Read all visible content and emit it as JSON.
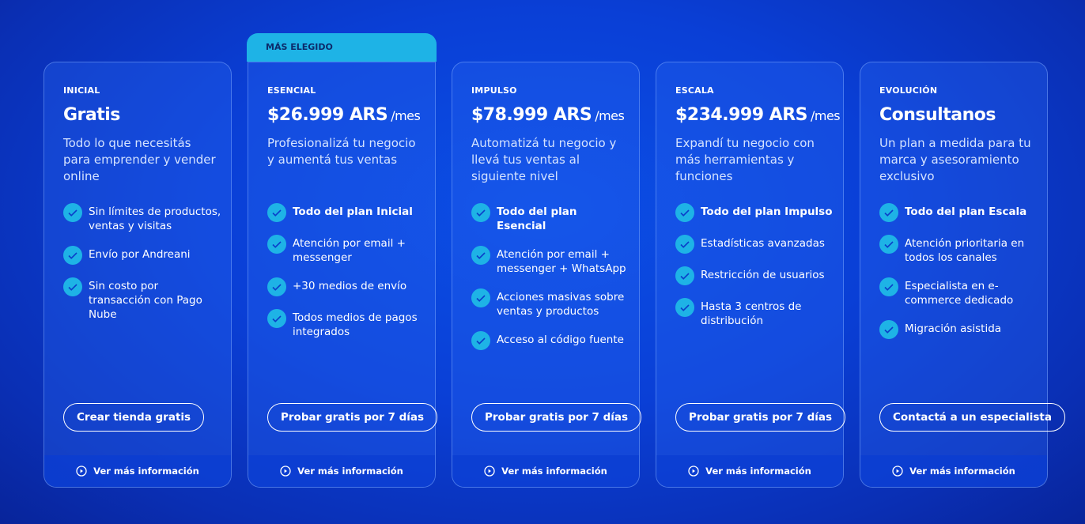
{
  "plans": [
    {
      "tier": "INICIAL",
      "price": "Gratis",
      "description": "Todo lo que necesitás para emprender y vender online",
      "features": [
        "Sin límites de productos, ventas y visitas",
        "Envío por Andreani",
        "Sin costo por transacción con Pago Nube"
      ],
      "button": "Crear tienda gratis",
      "more": "Ver más información"
    },
    {
      "badge": "MÁS ELEGIDO",
      "tier": "ESENCIAL",
      "price": "$26.999 ARS",
      "unit": "/mes",
      "description": "Profesionalizá tu negocio y aumentá tus ventas",
      "inherits": "Todo del plan Inicial",
      "features": [
        "Atención por email + messenger",
        "+30 medios de envío",
        "Todos medios de pagos integrados"
      ],
      "button": "Probar gratis por 7 días",
      "more": "Ver más información"
    },
    {
      "tier": "IMPULSO",
      "price": "$78.999 ARS",
      "unit": "/mes",
      "description": "Automatizá tu negocio y llevá tus ventas al siguiente nivel",
      "inherits": "Todo del plan Esencial",
      "features": [
        "Atención por email + messenger + WhatsApp",
        "Acciones masivas sobre ventas y productos",
        "Acceso al código fuente"
      ],
      "button": "Probar gratis por 7 días",
      "more": "Ver más información"
    },
    {
      "tier": "ESCALA",
      "price": "$234.999 ARS",
      "unit": "/mes",
      "description": "Expandí tu negocio con más herramientas y funciones",
      "inherits": "Todo del plan Impulso",
      "features": [
        "Estadísticas avanzadas",
        "Restricción de usuarios",
        "Hasta 3 centros de distribución"
      ],
      "button": "Probar gratis por 7 días",
      "more": "Ver más información"
    },
    {
      "tier": "EVOLUCIÓN",
      "price": "Consultanos",
      "description": "Un plan a medida para tu marca y asesoramiento exclusivo",
      "inherits": "Todo del plan Escala",
      "features": [
        "Atención prioritaria en todos los canales",
        "Especialista en e-commerce dedicado",
        "Migración asistida"
      ],
      "button": "Contactá a un especialista",
      "more": "Ver más información"
    }
  ]
}
